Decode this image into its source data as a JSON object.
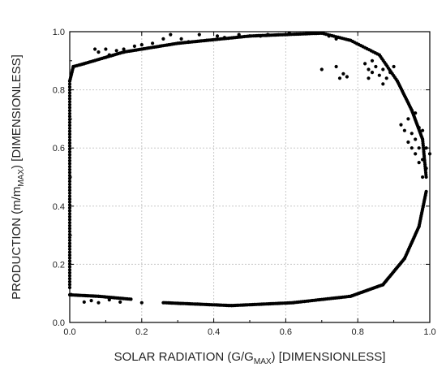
{
  "chart_data": {
    "type": "scatter",
    "xlabel": {
      "main": "SOLAR RADIATION (G/G",
      "sub": "MAX",
      "tail": ") [DIMENSIONLESS]"
    },
    "ylabel": {
      "main": "PRODUCTION (m/m",
      "sub": "MAX",
      "tail": ") [DIMENSIONLESS]"
    },
    "xlim": [
      0,
      1.0
    ],
    "ylim": [
      0,
      1.0
    ],
    "xticks": [
      "0.0",
      "0.2",
      "0.4",
      "0.6",
      "0.8",
      "1.0"
    ],
    "yticks": [
      "0.0",
      "0.2",
      "0.4",
      "0.6",
      "0.8",
      "1.0"
    ],
    "grid": true,
    "marker_color": "#000000",
    "path_segments": [
      {
        "from": [
          0.0,
          0.12
        ],
        "to": [
          0.0,
          0.83
        ],
        "n": 70
      },
      {
        "from": [
          0.0,
          0.83
        ],
        "to": [
          0.01,
          0.88
        ],
        "n": 8
      },
      {
        "from": [
          0.01,
          0.88
        ],
        "to": [
          0.04,
          0.89
        ],
        "n": 6
      },
      {
        "from": [
          0.0,
          0.095
        ],
        "to": [
          0.08,
          0.09
        ],
        "n": 18
      },
      {
        "from": [
          0.08,
          0.09
        ],
        "to": [
          0.17,
          0.08
        ],
        "n": 18
      },
      {
        "from": [
          0.26,
          0.068
        ],
        "to": [
          0.45,
          0.058
        ],
        "n": 40
      },
      {
        "from": [
          0.45,
          0.058
        ],
        "to": [
          0.62,
          0.068
        ],
        "n": 35
      },
      {
        "from": [
          0.62,
          0.068
        ],
        "to": [
          0.78,
          0.09
        ],
        "n": 30
      },
      {
        "from": [
          0.78,
          0.09
        ],
        "to": [
          0.87,
          0.13
        ],
        "n": 22
      },
      {
        "from": [
          0.87,
          0.13
        ],
        "to": [
          0.93,
          0.22
        ],
        "n": 22
      },
      {
        "from": [
          0.93,
          0.22
        ],
        "to": [
          0.97,
          0.33
        ],
        "n": 20
      },
      {
        "from": [
          0.97,
          0.33
        ],
        "to": [
          0.99,
          0.45
        ],
        "n": 20
      },
      {
        "from": [
          0.91,
          0.83
        ],
        "to": [
          0.95,
          0.73
        ],
        "n": 18
      },
      {
        "from": [
          0.95,
          0.73
        ],
        "to": [
          0.98,
          0.63
        ],
        "n": 18
      },
      {
        "from": [
          0.98,
          0.63
        ],
        "to": [
          0.99,
          0.5
        ],
        "n": 18
      },
      {
        "from": [
          0.04,
          0.89
        ],
        "to": [
          0.15,
          0.93
        ],
        "n": 22
      },
      {
        "from": [
          0.15,
          0.93
        ],
        "to": [
          0.3,
          0.96
        ],
        "n": 30
      },
      {
        "from": [
          0.3,
          0.96
        ],
        "to": [
          0.5,
          0.985
        ],
        "n": 40
      },
      {
        "from": [
          0.5,
          0.985
        ],
        "to": [
          0.7,
          0.995
        ],
        "n": 40
      },
      {
        "from": [
          0.7,
          0.995
        ],
        "to": [
          0.78,
          0.97
        ],
        "n": 14
      },
      {
        "from": [
          0.78,
          0.97
        ],
        "to": [
          0.86,
          0.92
        ],
        "n": 14
      },
      {
        "from": [
          0.86,
          0.92
        ],
        "to": [
          0.91,
          0.83
        ],
        "n": 14
      }
    ],
    "points": [
      [
        0.07,
        0.94
      ],
      [
        0.08,
        0.93
      ],
      [
        0.1,
        0.94
      ],
      [
        0.11,
        0.92
      ],
      [
        0.13,
        0.935
      ],
      [
        0.15,
        0.94
      ],
      [
        0.18,
        0.95
      ],
      [
        0.2,
        0.955
      ],
      [
        0.23,
        0.96
      ],
      [
        0.26,
        0.975
      ],
      [
        0.28,
        0.99
      ],
      [
        0.31,
        0.975
      ],
      [
        0.33,
        0.965
      ],
      [
        0.36,
        0.99
      ],
      [
        0.38,
        0.97
      ],
      [
        0.41,
        0.985
      ],
      [
        0.43,
        0.98
      ],
      [
        0.47,
        0.99
      ],
      [
        0.53,
        0.985
      ],
      [
        0.55,
        0.99
      ],
      [
        0.61,
        0.995
      ],
      [
        0.66,
        0.995
      ],
      [
        0.72,
        0.985
      ],
      [
        0.74,
        0.975
      ],
      [
        0.7,
        0.87
      ],
      [
        0.75,
        0.84
      ],
      [
        0.76,
        0.855
      ],
      [
        0.77,
        0.845
      ],
      [
        0.74,
        0.88
      ],
      [
        0.82,
        0.89
      ],
      [
        0.83,
        0.87
      ],
      [
        0.84,
        0.86
      ],
      [
        0.85,
        0.88
      ],
      [
        0.86,
        0.85
      ],
      [
        0.87,
        0.87
      ],
      [
        0.88,
        0.84
      ],
      [
        0.89,
        0.86
      ],
      [
        0.9,
        0.88
      ],
      [
        0.84,
        0.9
      ],
      [
        0.83,
        0.84
      ],
      [
        0.87,
        0.82
      ],
      [
        0.92,
        0.68
      ],
      [
        0.93,
        0.66
      ],
      [
        0.94,
        0.7
      ],
      [
        0.94,
        0.62
      ],
      [
        0.95,
        0.65
      ],
      [
        0.96,
        0.58
      ],
      [
        0.96,
        0.72
      ],
      [
        0.97,
        0.55
      ],
      [
        0.97,
        0.6
      ],
      [
        0.98,
        0.56
      ],
      [
        0.99,
        0.6
      ],
      [
        0.99,
        0.53
      ],
      [
        0.95,
        0.6
      ],
      [
        0.96,
        0.63
      ],
      [
        0.98,
        0.66
      ],
      [
        1.0,
        0.58
      ],
      [
        0.98,
        0.5
      ],
      [
        0.97,
        0.67
      ],
      [
        0.04,
        0.07
      ],
      [
        0.06,
        0.075
      ],
      [
        0.08,
        0.068
      ],
      [
        0.11,
        0.078
      ],
      [
        0.14,
        0.07
      ],
      [
        0.2,
        0.068
      ]
    ]
  }
}
